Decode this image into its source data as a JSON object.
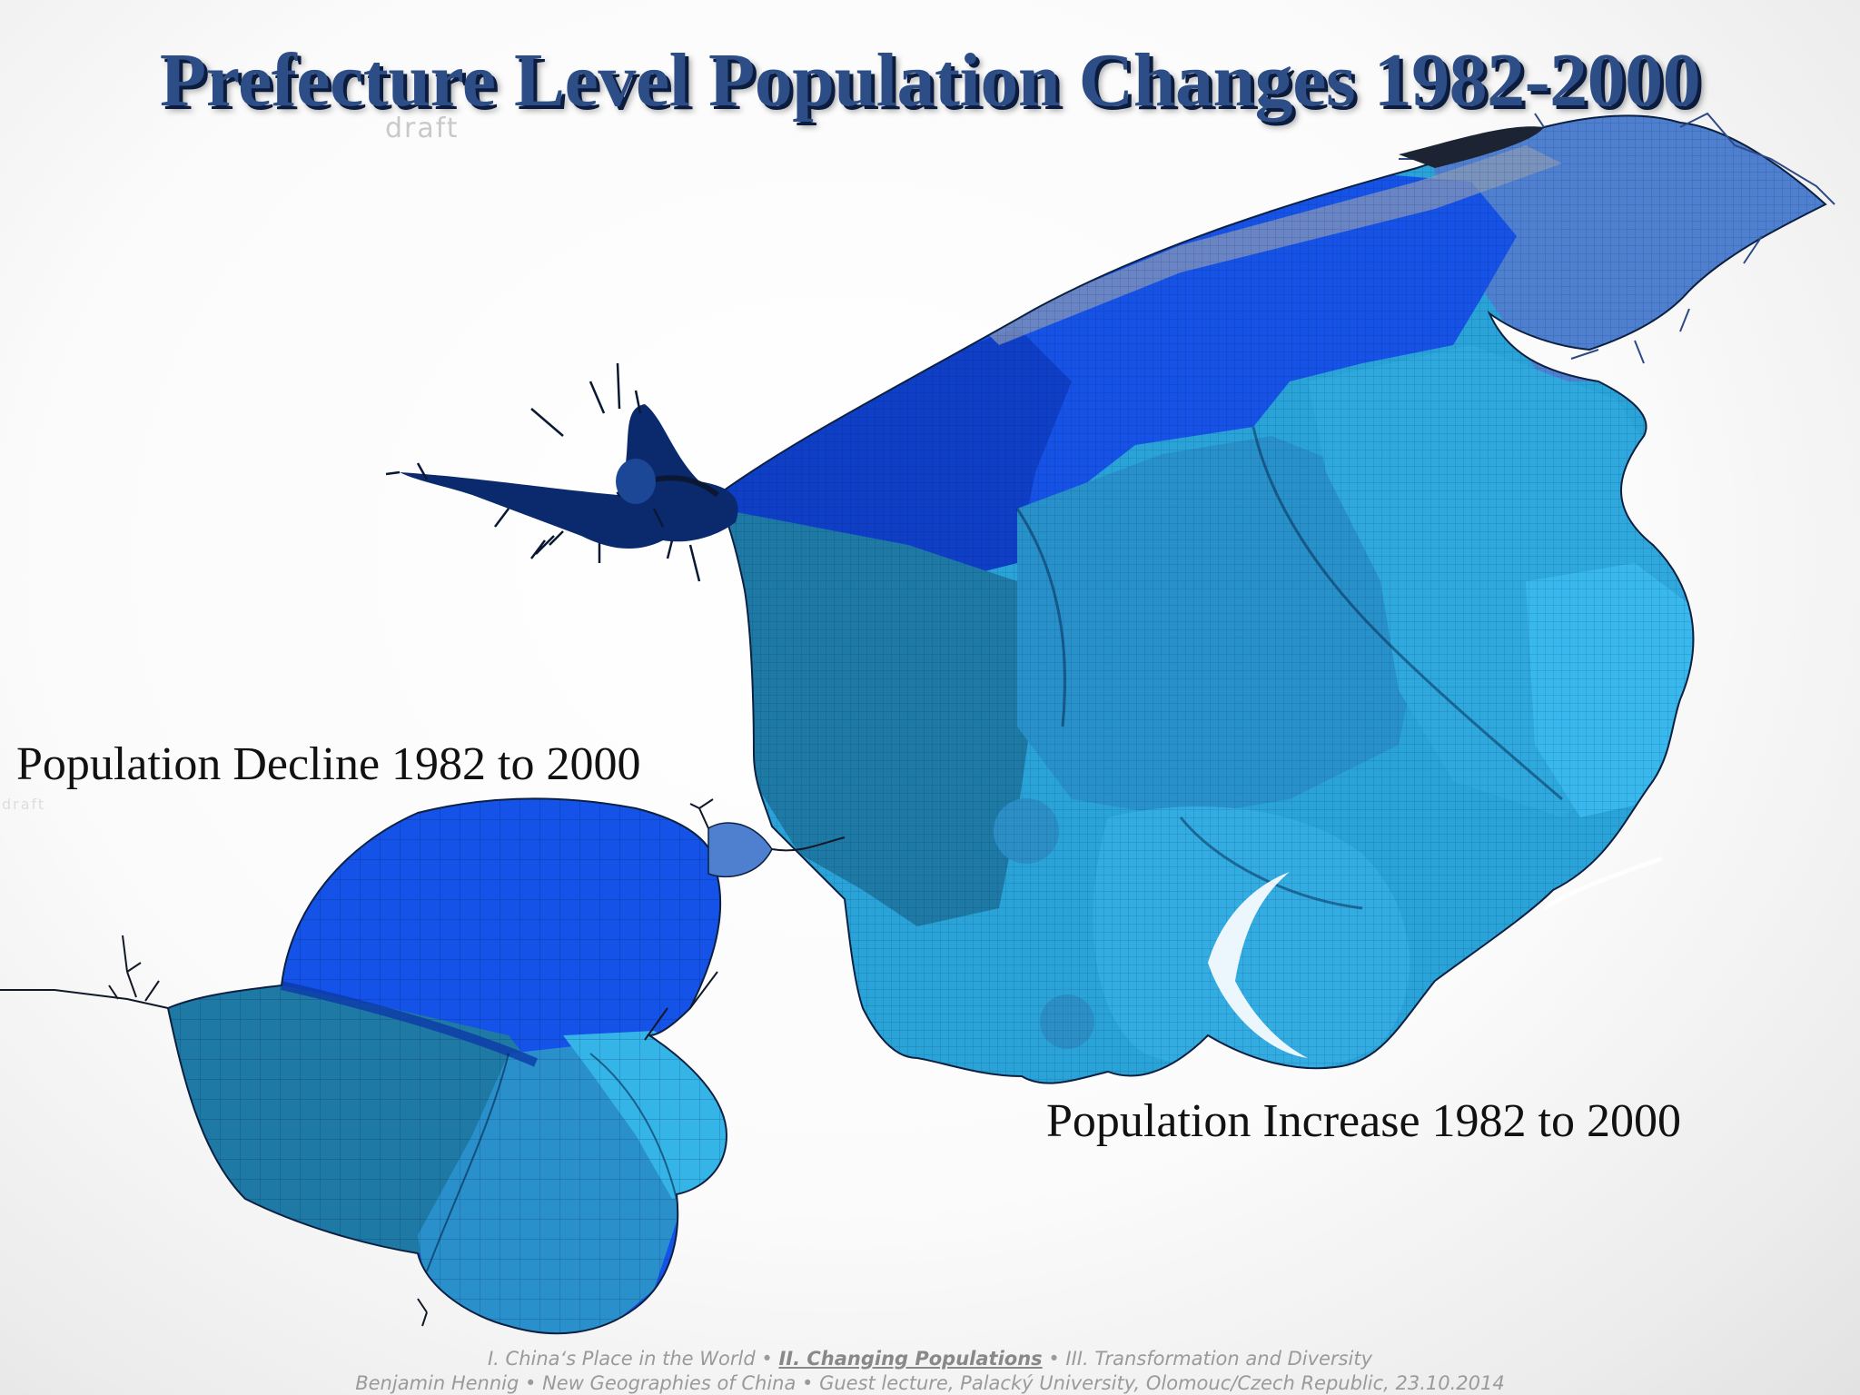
{
  "slide": {
    "title": "Prefecture Level Population Changes 1982-2000",
    "watermark": "draft",
    "watermark_small": "draft"
  },
  "map": {
    "type": "cartogram",
    "decline_label": "Population Decline 1982 to 2000",
    "increase_label": "Population Increase 1982 to 2000",
    "colors": {
      "dark_navy": "#0b2a6e",
      "royal_blue": "#0f3fc6",
      "bright_blue": "#1452e8",
      "steel_blue": "#4f7fcf",
      "teal_blue": "#1e7aa5",
      "medium_blue": "#2a90cc",
      "sky_blue": "#2ea6db",
      "light_cyan": "#35b4e8",
      "title_blue": "#2c4d86"
    }
  },
  "footer": {
    "nav_part1": "I. China‘s Place in the World •",
    "nav_current": "II. Changing Populations",
    "nav_part3": "•  III. Transformation and Diversity",
    "credit": "Benjamin Hennig • New Geographies of China • Guest lecture, Palacký University, Olomouc/Czech Republic, 23.10.2014"
  }
}
